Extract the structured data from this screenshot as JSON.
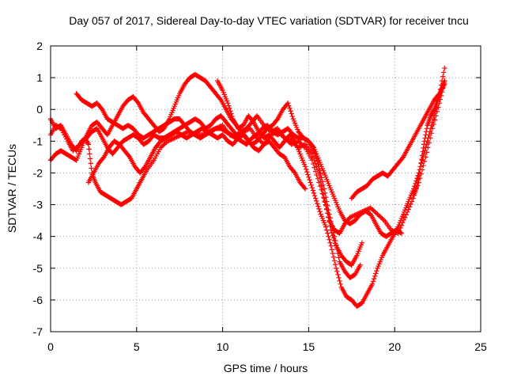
{
  "chart_data": {
    "type": "scatter",
    "title": "Day 057 of 2017, Sidereal Day-to-day VTEC variation (SDTVAR) for receiver tncu",
    "xlabel": "GPS time / hours",
    "ylabel": "SDTVAR / TECUs",
    "xlim": [
      0,
      25
    ],
    "ylim": [
      -7,
      2
    ],
    "xticks": [
      "0",
      "5",
      "10",
      "15",
      "20",
      "25"
    ],
    "yticks": [
      "-7",
      "-6",
      "-5",
      "-4",
      "-3",
      "-2",
      "-1",
      "0",
      "1",
      "2"
    ],
    "grid": true,
    "legend": "none",
    "marker": "+",
    "color": "#ff0000",
    "series": [
      {
        "x": [
          0.0,
          0.3,
          0.6,
          1.0,
          1.3,
          1.7,
          2.0,
          2.2,
          2.4,
          2.6,
          2.9,
          3.2,
          3.5,
          3.8,
          4.1,
          4.4,
          4.7,
          5.0,
          5.3,
          5.6,
          6.0,
          6.4,
          6.8,
          7.2,
          7.6,
          8.0,
          8.4,
          8.8,
          9.2,
          9.6,
          10.0,
          10.4,
          10.8,
          11.2,
          11.6,
          12.0,
          12.4,
          12.8,
          13.2,
          13.6,
          14.0,
          14.4,
          14.8,
          15.2,
          15.6,
          15.9,
          16.2,
          16.5,
          16.8,
          17.1,
          17.4,
          17.8,
          18.2,
          18.6,
          19.0,
          19.4,
          19.8,
          20.2,
          20.6,
          21.0,
          21.4,
          21.8,
          22.2,
          22.6,
          22.9
        ],
        "y": [
          -0.8,
          -0.5,
          -0.6,
          -1.0,
          -1.3,
          -1.1,
          -0.9,
          -1.1,
          -2.0,
          -2.3,
          -2.6,
          -2.7,
          -2.8,
          -2.9,
          -3.0,
          -2.9,
          -2.8,
          -2.5,
          -2.2,
          -1.9,
          -1.6,
          -1.2,
          -1.0,
          -0.9,
          -0.8,
          -0.7,
          -0.8,
          -0.8,
          -0.7,
          -0.6,
          -0.5,
          -0.8,
          -0.9,
          -0.7,
          -0.6,
          -0.9,
          -1.1,
          -0.8,
          -0.7,
          -0.9,
          -1.0,
          -1.2,
          -1.1,
          -1.4,
          -2.0,
          -2.8,
          -3.5,
          -3.8,
          -3.9,
          -3.6,
          -3.4,
          -3.3,
          -3.2,
          -3.1,
          -3.3,
          -3.5,
          -3.8,
          -3.9,
          -3.4,
          -2.9,
          -2.3,
          -1.5,
          -0.6,
          0.2,
          0.9
        ]
      },
      {
        "x": [
          0.0,
          0.3,
          0.6,
          0.9,
          1.2,
          1.5,
          1.8,
          2.1,
          2.4,
          2.7,
          3.0,
          3.3,
          3.6,
          3.9,
          4.2,
          4.5,
          4.8,
          5.1,
          5.4,
          5.7,
          6.0,
          6.3,
          6.6,
          6.9,
          7.2,
          7.5,
          7.8,
          8.1,
          8.4,
          8.7,
          9.0,
          9.3,
          9.6,
          9.9,
          10.2,
          10.5,
          10.8,
          11.1,
          11.4,
          11.7,
          12.0,
          12.4,
          12.8,
          13.2,
          13.6,
          14.0,
          14.4,
          14.8,
          15.2,
          15.6,
          16.0,
          16.3,
          16.6,
          16.9,
          17.2,
          17.5,
          17.8,
          18.1
        ],
        "y": [
          -1.6,
          -1.4,
          -1.3,
          -1.4,
          -1.5,
          -1.6,
          -1.2,
          -0.8,
          -0.5,
          -0.4,
          -0.6,
          -0.8,
          -0.5,
          -0.2,
          0.1,
          0.3,
          0.4,
          0.2,
          -0.1,
          -0.3,
          -0.5,
          -0.7,
          -0.6,
          -0.3,
          0.1,
          0.5,
          0.8,
          1.0,
          1.1,
          1.0,
          0.9,
          0.7,
          0.5,
          0.3,
          0.0,
          -0.3,
          -0.5,
          -0.7,
          -0.6,
          -0.4,
          -0.2,
          -0.5,
          -0.7,
          -0.6,
          -0.9,
          -1.1,
          -1.0,
          -1.2,
          -1.6,
          -2.3,
          -3.0,
          -3.8,
          -4.3,
          -4.6,
          -4.8,
          -4.9,
          -4.6,
          -4.2
        ]
      },
      {
        "x": [
          1.5,
          1.8,
          2.1,
          2.4,
          2.7,
          3.0,
          3.3,
          3.6,
          3.9,
          4.2,
          4.5,
          4.8,
          5.1,
          5.4,
          5.7,
          6.0,
          6.3,
          6.6,
          6.9,
          7.2,
          7.5,
          7.8,
          8.1,
          8.4,
          8.7,
          9.0,
          9.3,
          9.6,
          9.9,
          10.2,
          10.5,
          10.8,
          11.1,
          11.4,
          11.7,
          12.0,
          12.3,
          12.6,
          12.9,
          13.2,
          13.5,
          13.8,
          14.1,
          14.4,
          14.7,
          15.0,
          15.3,
          15.6,
          15.9,
          16.2,
          16.5,
          16.8,
          17.1,
          17.4,
          17.7,
          18.0
        ],
        "y": [
          0.5,
          0.3,
          0.2,
          0.1,
          0.2,
          0.0,
          -0.3,
          -0.4,
          -0.5,
          -0.6,
          -0.5,
          -0.6,
          -0.8,
          -0.9,
          -0.8,
          -0.7,
          -0.6,
          -0.5,
          -0.4,
          -0.3,
          -0.3,
          -0.5,
          -0.7,
          -0.8,
          -0.9,
          -0.8,
          -0.7,
          -0.6,
          -0.6,
          -0.7,
          -0.8,
          -0.9,
          -1.0,
          -1.1,
          -0.9,
          -0.8,
          -0.6,
          -0.5,
          -0.7,
          -0.8,
          -0.7,
          -0.6,
          -0.8,
          -0.9,
          -0.9,
          -1.0,
          -1.3,
          -1.8,
          -2.5,
          -3.3,
          -4.0,
          -4.8,
          -5.1,
          -5.3,
          -5.2,
          -4.9
        ]
      },
      {
        "x": [
          0.0,
          0.3,
          0.6,
          0.9,
          1.2,
          1.5,
          1.8,
          2.1,
          2.4,
          2.7,
          3.0,
          3.3,
          3.6,
          3.9,
          4.2,
          4.5,
          4.8,
          5.1,
          5.4,
          5.7,
          6.0,
          6.3,
          6.6,
          6.9,
          7.2,
          7.5,
          7.8,
          8.1,
          8.4,
          8.7,
          9.0,
          9.3,
          9.6,
          9.9,
          10.2,
          10.5,
          10.8,
          11.1,
          11.4,
          11.7,
          12.0,
          12.3,
          12.6,
          12.9,
          13.2,
          13.5,
          13.8,
          14.1,
          14.4,
          14.7,
          15.0,
          15.3,
          15.6,
          15.9,
          16.2,
          16.5,
          16.8,
          17.1,
          17.4,
          17.7,
          18.0,
          18.3,
          18.6,
          18.9,
          19.2,
          19.5,
          19.8,
          20.1,
          20.4
        ],
        "y": [
          -0.3,
          -0.6,
          -0.5,
          -0.8,
          -1.1,
          -1.3,
          -1.0,
          -0.9,
          -0.7,
          -0.6,
          -0.9,
          -1.2,
          -1.4,
          -1.2,
          -1.0,
          -0.9,
          -0.8,
          -0.9,
          -1.1,
          -1.0,
          -0.8,
          -0.9,
          -0.9,
          -0.8,
          -0.7,
          -0.6,
          -0.5,
          -0.4,
          -0.3,
          -0.4,
          -0.6,
          -0.5,
          -0.3,
          -0.2,
          -0.4,
          -0.6,
          -0.8,
          -0.7,
          -0.9,
          -1.1,
          -1.0,
          -0.8,
          -0.6,
          -0.5,
          -0.3,
          0.0,
          0.2,
          -0.3,
          -0.7,
          -0.9,
          -1.0,
          -1.2,
          -1.6,
          -2.0,
          -2.4,
          -2.8,
          -3.2,
          -3.5,
          -3.6,
          -3.5,
          -3.3,
          -3.2,
          -3.3,
          -3.6,
          -3.9,
          -4.0,
          -3.9,
          -3.8,
          -3.9
        ]
      },
      {
        "x": [
          9.7,
          10.0,
          10.3,
          10.6,
          10.9,
          11.2,
          11.5,
          11.8,
          12.1,
          12.4,
          12.7,
          13.0,
          13.3,
          13.6,
          13.9,
          14.2,
          14.5,
          14.8,
          15.1,
          15.4,
          15.7,
          16.0,
          16.3,
          16.6,
          16.9,
          17.2,
          17.5,
          17.8,
          18.1,
          18.4,
          18.7,
          19.0,
          19.3,
          19.6,
          19.9,
          20.2,
          20.5,
          20.8,
          21.1,
          21.4,
          21.7,
          22.0,
          22.3,
          22.6,
          22.9
        ],
        "y": [
          0.9,
          0.6,
          0.2,
          -0.3,
          -0.6,
          -0.5,
          -0.2,
          -0.4,
          -0.7,
          -0.9,
          -0.8,
          -1.0,
          -1.2,
          -1.0,
          -0.8,
          -1.0,
          -1.4,
          -1.8,
          -2.3,
          -2.8,
          -3.3,
          -3.7,
          -4.3,
          -5.0,
          -5.6,
          -5.9,
          -6.0,
          -6.2,
          -6.1,
          -5.8,
          -5.5,
          -5.0,
          -4.6,
          -4.3,
          -4.0,
          -3.7,
          -3.3,
          -2.9,
          -2.5,
          -2.0,
          -1.4,
          -0.8,
          -0.2,
          0.5,
          1.3
        ]
      },
      {
        "x": [
          2.2,
          2.5,
          2.8,
          3.1,
          3.4,
          3.7,
          4.0,
          4.3,
          4.6,
          4.9,
          5.2,
          5.5,
          5.8,
          6.1,
          6.4,
          6.7,
          7.0,
          7.3,
          7.6,
          7.9,
          8.2,
          8.5,
          8.8,
          9.1,
          9.4,
          9.7,
          10.0,
          10.3,
          10.6,
          10.9,
          11.2,
          11.5,
          11.8,
          12.1,
          12.4,
          12.7,
          13.0,
          13.3,
          13.6,
          13.9,
          14.2,
          14.5,
          14.8
        ],
        "y": [
          -2.3,
          -2.0,
          -1.7,
          -1.5,
          -1.2,
          -1.0,
          -1.1,
          -1.3,
          -1.5,
          -1.8,
          -2.0,
          -1.8,
          -1.5,
          -1.2,
          -1.0,
          -0.9,
          -0.8,
          -0.7,
          -0.8,
          -0.9,
          -0.8,
          -0.7,
          -0.6,
          -0.7,
          -0.8,
          -0.9,
          -0.8,
          -1.0,
          -1.1,
          -0.9,
          -0.8,
          -1.0,
          -1.2,
          -1.3,
          -1.1,
          -1.0,
          -1.2,
          -1.4,
          -1.5,
          -1.8,
          -2.0,
          -2.3,
          -2.5
        ]
      },
      {
        "x": [
          17.5,
          17.8,
          18.1,
          18.4,
          18.7,
          19.0,
          19.3,
          19.6,
          19.9,
          20.2,
          20.5,
          20.8,
          21.1,
          21.4,
          21.7,
          22.0,
          22.3,
          22.6,
          22.9
        ],
        "y": [
          -2.8,
          -2.6,
          -2.5,
          -2.4,
          -2.2,
          -2.1,
          -2.0,
          -2.1,
          -1.9,
          -1.7,
          -1.5,
          -1.2,
          -0.9,
          -0.6,
          -0.3,
          0.0,
          0.3,
          0.5,
          0.8
        ]
      },
      {
        "x": [
          21.1,
          21.3,
          21.5,
          21.7,
          21.9,
          22.1,
          22.3,
          22.5,
          22.7,
          22.9
        ],
        "y": [
          -2.7,
          -2.4,
          -1.8,
          -1.1,
          -0.5,
          -0.2,
          0.0,
          0.3,
          0.6,
          0.9
        ]
      }
    ]
  }
}
